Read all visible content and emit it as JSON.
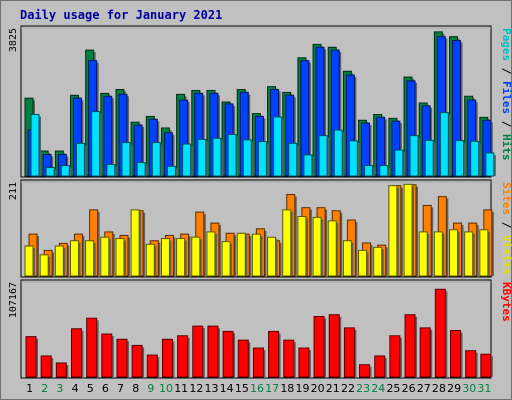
{
  "chart_data": {
    "type": "bar",
    "title": "Daily usage for January 2021",
    "grid": false,
    "categories": [
      "1",
      "2",
      "3",
      "4",
      "5",
      "6",
      "7",
      "8",
      "9",
      "10",
      "11",
      "12",
      "13",
      "14",
      "15",
      "16",
      "17",
      "18",
      "19",
      "20",
      "21",
      "22",
      "23",
      "24",
      "25",
      "26",
      "27",
      "28",
      "29",
      "30",
      "31"
    ],
    "weekend_days": [
      2,
      3,
      9,
      10,
      16,
      17,
      23,
      24,
      30,
      31
    ],
    "panels": [
      {
        "id": "hits",
        "ymax_label": "3825",
        "ylim": [
          0,
          3825
        ],
        "series": [
          {
            "name": "Hits",
            "color": "#008040",
            "values": [
              2025,
              650,
              650,
              2100,
              3275,
              2150,
              2250,
              1400,
              1550,
              1250,
              2125,
              2225,
              2225,
              1925,
              2250,
              1625,
              2325,
              2175,
              3075,
              3425,
              3350,
              2725,
              1450,
              1600,
              1500,
              2575,
              1900,
              3750,
              3625,
              2075,
              1525
            ]
          },
          {
            "name": "Files",
            "color": "#0040ff",
            "values": [
              1200,
              560,
              560,
              2025,
              3000,
              2075,
              2125,
              1325,
              1475,
              1125,
              1975,
              2150,
              2150,
              1875,
              2175,
              1550,
              2250,
              2100,
              3000,
              3350,
              3275,
              2625,
              1375,
              1525,
              1425,
              2475,
              1825,
              3625,
              3525,
              1975,
              1450
            ]
          },
          {
            "name": "Pages",
            "color": "#00e0ff",
            "values": [
              1600,
              220,
              270,
              850,
              1675,
              300,
              870,
              350,
              870,
              250,
              830,
              950,
              980,
              1080,
              940,
              895,
              1535,
              850,
              550,
              1050,
              1195,
              915,
              270,
              270,
              675,
              1050,
              925,
              1650,
              920,
              900,
              600
            ]
          }
        ]
      },
      {
        "id": "visits",
        "ymax_label": "211",
        "ylim": [
          0,
          211
        ],
        "series": [
          {
            "name": "Visits",
            "color": "#ffff00",
            "values": [
              68,
              48,
              68,
              80,
              80,
              88,
              85,
              150,
              72,
              85,
              85,
              88,
              100,
              78,
              97,
              95,
              88,
              150,
              135,
              133,
              125,
              80,
              58,
              65,
              205,
              208,
              100,
              100,
              105,
              100,
              105
            ]
          },
          {
            "name": "Sites",
            "color": "#ff8000",
            "values": [
              95,
              58,
              74,
              95,
              150,
              100,
              92,
              148,
              80,
              92,
              95,
              145,
              120,
              97,
              95,
              107,
              80,
              185,
              155,
              155,
              148,
              127,
              75,
              70,
              205,
              207,
              160,
              180,
              120,
              120,
              150
            ]
          }
        ]
      },
      {
        "id": "kbytes",
        "ymax_label": "107167",
        "ylim": [
          0,
          107167
        ],
        "series": [
          {
            "name": "KBytes",
            "color": "#ff0000",
            "values": [
              46000,
              24000,
              16000,
              55000,
              67000,
              49000,
              43000,
              36000,
              25000,
              43000,
              47000,
              58000,
              58000,
              52000,
              42000,
              33000,
              52000,
              42000,
              33000,
              69000,
              71000,
              56000,
              14000,
              24000,
              47000,
              71000,
              56000,
              100000,
              53000,
              30000,
              26000
            ]
          }
        ]
      }
    ],
    "right_labels": [
      {
        "panel": "hits",
        "parts": [
          {
            "text": "Pages",
            "color": "#00c0c0"
          },
          {
            "text": " / ",
            "color": "#000000"
          },
          {
            "text": "Files",
            "color": "#0040ff"
          },
          {
            "text": " / ",
            "color": "#000000"
          },
          {
            "text": "Hits",
            "color": "#008040"
          }
        ]
      },
      {
        "panel": "visits",
        "parts": [
          {
            "text": "Sites",
            "color": "#ff8000"
          },
          {
            "text": " / ",
            "color": "#000000"
          },
          {
            "text": "Visits",
            "color": "#e0e000"
          }
        ]
      },
      {
        "panel": "kbytes",
        "parts": [
          {
            "text": "KBytes",
            "color": "#ff0000"
          }
        ]
      }
    ],
    "colors": {
      "background": "#c0c0c0",
      "plot_background": "#c0c0c0",
      "title": "#0000a0",
      "weekday_label": "#000000",
      "weekend_label": "#008040"
    }
  }
}
